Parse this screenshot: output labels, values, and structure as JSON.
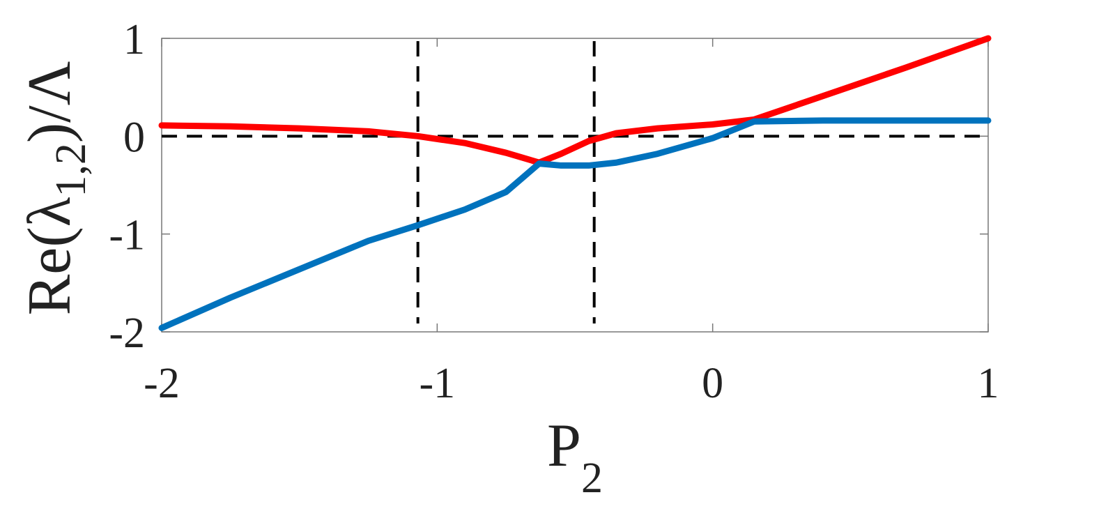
{
  "chart_data": {
    "type": "line",
    "xlabel": "P",
    "xlabel_sub": "2",
    "ylabel": "Re(λ",
    "ylabel_sub": "1,2",
    "ylabel_end": ")/Λ",
    "x": [
      -2,
      -1.75,
      -1.5,
      -1.25,
      -1.07,
      -0.9,
      -0.75,
      -0.63,
      -0.55,
      -0.45,
      -0.35,
      -0.2,
      0,
      0.15,
      0.4,
      0.7,
      1
    ],
    "series": [
      {
        "color": "#ff0000",
        "values": [
          0.11,
          0.1,
          0.08,
          0.05,
          0.0,
          -0.07,
          -0.17,
          -0.27,
          -0.18,
          -0.05,
          0.03,
          0.08,
          0.12,
          0.17,
          0.41,
          0.7,
          1
        ]
      },
      {
        "color": "#0072bd",
        "values": [
          -1.96,
          -1.65,
          -1.36,
          -1.07,
          -0.91,
          -0.75,
          -0.57,
          -0.28,
          -0.3,
          -0.3,
          -0.27,
          -0.18,
          -0.02,
          0.15,
          0.16,
          0.16,
          0.16
        ]
      }
    ],
    "vlines": [
      -1.07,
      -0.43
    ],
    "hlines": [
      0
    ],
    "xlim": [
      -2,
      1
    ],
    "ylim": [
      -2,
      1
    ],
    "xticks": [
      -2,
      -1,
      0,
      1
    ],
    "yticks": [
      -2,
      -1,
      0,
      1
    ]
  }
}
